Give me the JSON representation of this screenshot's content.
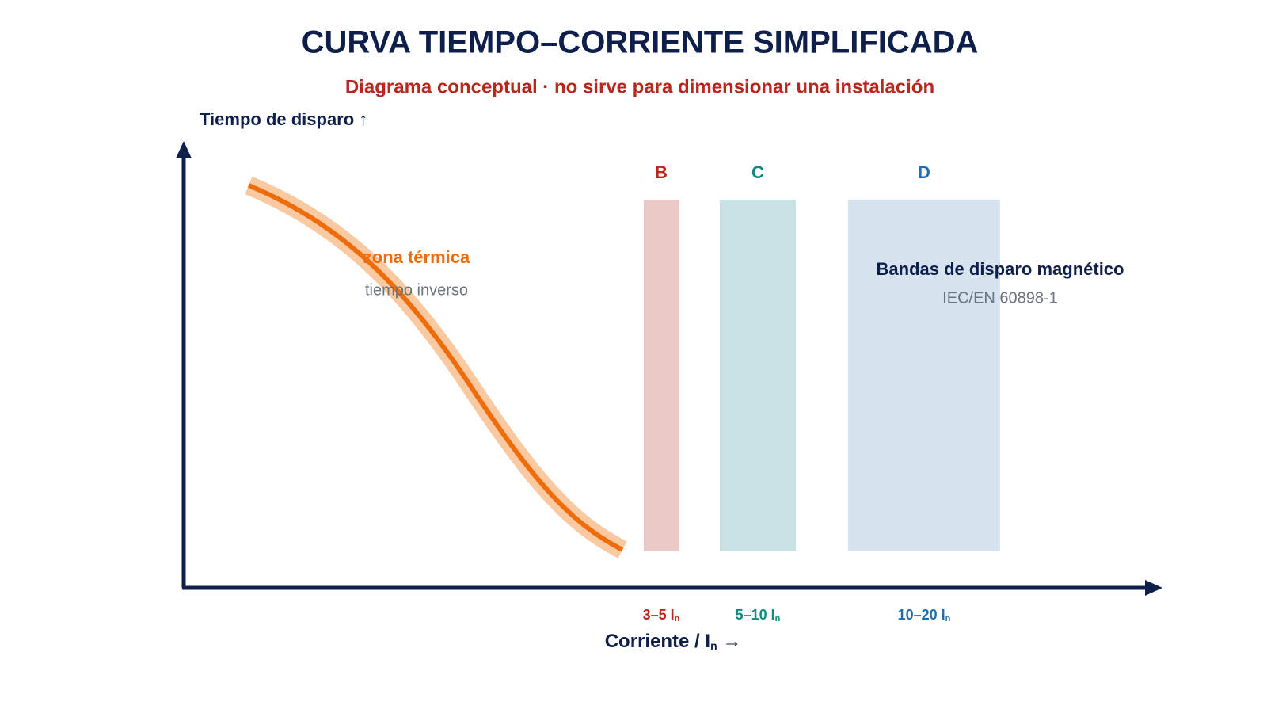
{
  "header": {
    "title": "CURVA TIEMPO–CORRIENTE SIMPLIFICADA",
    "subtitle": "Diagrama conceptual · no sirve para dimensionar una instalación"
  },
  "axes": {
    "y_label": "Tiempo de disparo ↑",
    "x_label": {
      "main": "Corriente / I",
      "sub": "n",
      "tail": " →"
    }
  },
  "thermal": {
    "title": "zona térmica",
    "subtitle": "tiempo inverso"
  },
  "magnetic": {
    "title": "Bandas de disparo magnético",
    "subtitle": "IEC/EN 60898-1"
  },
  "bands": [
    {
      "name": "B",
      "range": {
        "main": "3–5 I",
        "sub": "n"
      }
    },
    {
      "name": "C",
      "range": {
        "main": "5–10 I",
        "sub": "n"
      }
    },
    {
      "name": "D",
      "range": {
        "main": "10–20 I",
        "sub": "n"
      }
    }
  ]
}
